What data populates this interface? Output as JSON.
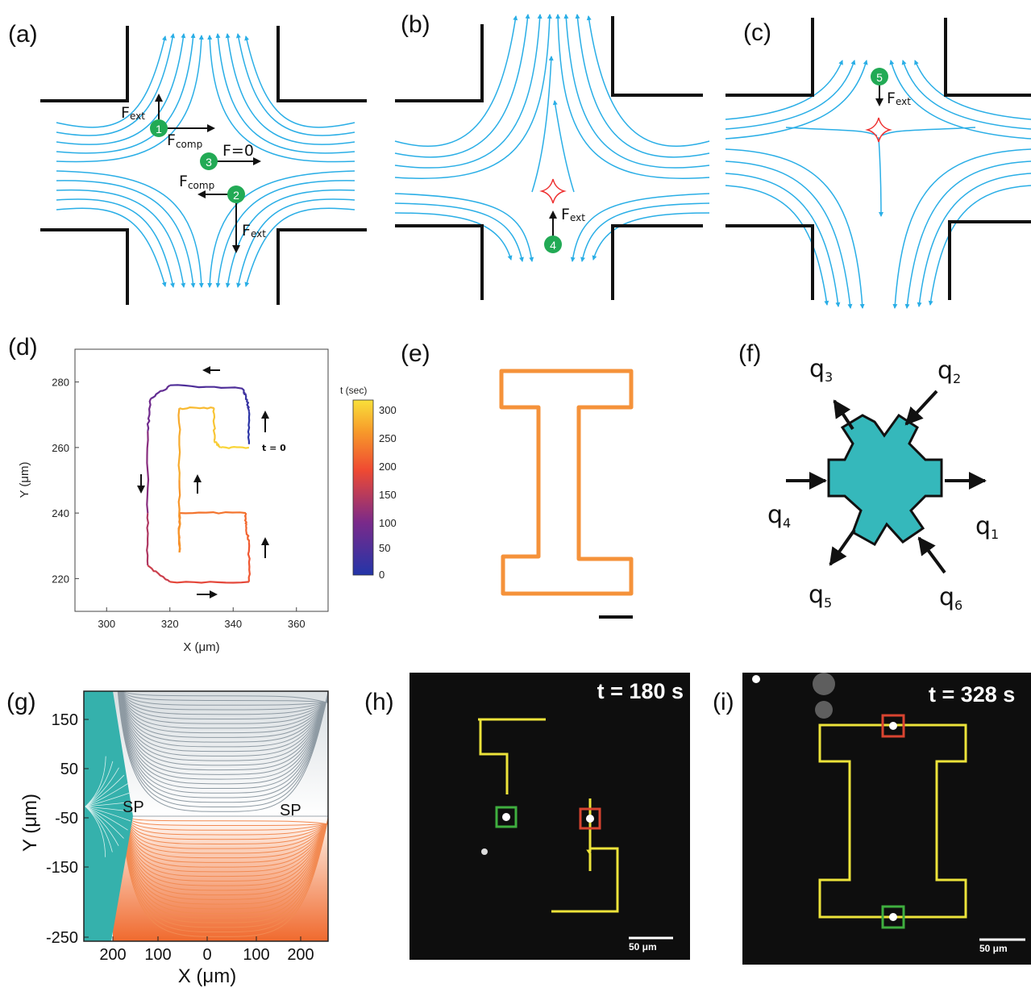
{
  "panels": {
    "a": {
      "label": "(a)",
      "particles": [
        "1",
        "2",
        "3"
      ],
      "forces": {
        "fext1_main": "F",
        "fext1_sub": "ext",
        "fcomp1_main": "F",
        "fcomp1_sub": "comp",
        "fzero": "F=0",
        "fcomp2_main": "F",
        "fcomp2_sub": "comp",
        "fext2_main": "F",
        "fext2_sub": "ext"
      }
    },
    "b": {
      "label": "(b)",
      "particle": "4",
      "force_main": "F",
      "force_sub": "ext"
    },
    "c": {
      "label": "(c)",
      "particle": "5",
      "force_main": "F",
      "force_sub": "ext"
    },
    "d": {
      "label": "(d)",
      "t0_label": "t = 0",
      "colorbar_title": "t (sec)",
      "colorbar_ticks": [
        "300",
        "250",
        "200",
        "150",
        "100",
        "50",
        "0"
      ]
    },
    "e": {
      "label": "(e)"
    },
    "f": {
      "label": "(f)",
      "q1": "q",
      "q1_sub": "1",
      "q2": "q",
      "q2_sub": "2",
      "q3": "q",
      "q3_sub": "3",
      "q4": "q",
      "q4_sub": "4",
      "q5": "q",
      "q5_sub": "5",
      "q6": "q",
      "q6_sub": "6"
    },
    "g": {
      "label": "(g)",
      "sp_left": "SP",
      "sp_right": "SP"
    },
    "h": {
      "label": "(h)",
      "time": "t = 180 s",
      "scale": "50 μm"
    },
    "i": {
      "label": "(i)",
      "time": "t = 328 s",
      "scale": "50 μm"
    }
  },
  "chart_data": [
    {
      "type": "line",
      "panel": "d",
      "xlabel": "X (μm)",
      "ylabel": "Y (μm)",
      "xlim": [
        290,
        370
      ],
      "ylim": [
        210,
        290
      ],
      "xticks": [
        "300",
        "320",
        "340",
        "360"
      ],
      "yticks": [
        "220",
        "240",
        "260",
        "280"
      ],
      "colorbar": {
        "label": "t (sec)",
        "range": [
          0,
          310
        ]
      },
      "series": [
        {
          "x": [
            345,
            345,
            344,
            343,
            320,
            314,
            313,
            313,
            313,
            320,
            345,
            345,
            344,
            344,
            323,
            323,
            323,
            323,
            334,
            334,
            336,
            345
          ],
          "y": [
            261,
            271,
            276,
            278,
            279,
            275,
            265,
            240,
            224,
            219,
            219,
            231,
            236,
            240,
            240,
            228,
            250,
            272,
            272,
            262,
            260,
            260
          ],
          "t": [
            0,
            15,
            25,
            35,
            60,
            75,
            90,
            120,
            150,
            165,
            190,
            205,
            210,
            215,
            228,
            240,
            260,
            275,
            285,
            292,
            298,
            305
          ]
        }
      ]
    },
    {
      "type": "contour",
      "panel": "g",
      "xlabel": "X (μm)",
      "ylabel": "Y (μm)",
      "xticks": [
        "200",
        "100",
        "0",
        "100",
        "200"
      ],
      "yticks": [
        "150",
        "50",
        "-50",
        "-150",
        "-250"
      ],
      "xlim": [
        -250,
        250
      ],
      "ylim": [
        -250,
        250
      ]
    }
  ]
}
